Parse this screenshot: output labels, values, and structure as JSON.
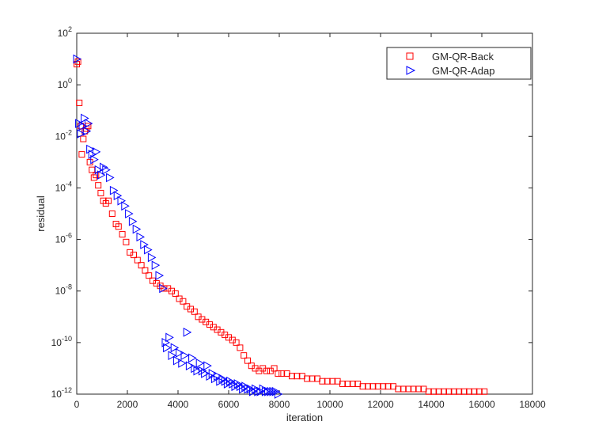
{
  "chart_data": {
    "type": "scatter",
    "title": "",
    "xlabel": "iteration",
    "ylabel": "residual",
    "xlim": [
      0,
      18000
    ],
    "ylim_log10": [
      -12,
      2
    ],
    "y_scale": "log",
    "grid": false,
    "legend_position": "top-right",
    "x_ticks": [
      0,
      2000,
      4000,
      6000,
      8000,
      10000,
      12000,
      14000,
      16000,
      18000
    ],
    "y_tick_exponents": [
      -12,
      -10,
      -8,
      -6,
      -4,
      -2,
      0,
      2
    ],
    "y_tick_base": "10",
    "series": [
      {
        "name": "GM-QR-Back",
        "marker": "square",
        "color": "#ff0000",
        "points": [
          [
            0,
            0.8
          ],
          [
            50,
            0.9
          ],
          [
            100,
            -0.7
          ],
          [
            160,
            -1.6
          ],
          [
            200,
            -2.7
          ],
          [
            260,
            -2.1
          ],
          [
            320,
            -1.8
          ],
          [
            380,
            -1.7
          ],
          [
            450,
            -1.6
          ],
          [
            520,
            -3.0
          ],
          [
            600,
            -3.3
          ],
          [
            680,
            -3.6
          ],
          [
            760,
            -3.5
          ],
          [
            850,
            -3.9
          ],
          [
            950,
            -4.2
          ],
          [
            1050,
            -4.5
          ],
          [
            1150,
            -4.6
          ],
          [
            1250,
            -4.5
          ],
          [
            1400,
            -5.0
          ],
          [
            1550,
            -5.4
          ],
          [
            1650,
            -5.5
          ],
          [
            1800,
            -5.8
          ],
          [
            1950,
            -6.1
          ],
          [
            2100,
            -6.5
          ],
          [
            2250,
            -6.6
          ],
          [
            2400,
            -6.8
          ],
          [
            2550,
            -7.0
          ],
          [
            2700,
            -7.2
          ],
          [
            2850,
            -7.4
          ],
          [
            3000,
            -7.6
          ],
          [
            3150,
            -7.7
          ],
          [
            3300,
            -7.8
          ],
          [
            3450,
            -7.9
          ],
          [
            3600,
            -7.9
          ],
          [
            3750,
            -8.0
          ],
          [
            3900,
            -8.1
          ],
          [
            4050,
            -8.3
          ],
          [
            4200,
            -8.4
          ],
          [
            4350,
            -8.6
          ],
          [
            4500,
            -8.7
          ],
          [
            4650,
            -8.8
          ],
          [
            4800,
            -9.0
          ],
          [
            4950,
            -9.1
          ],
          [
            5100,
            -9.2
          ],
          [
            5250,
            -9.3
          ],
          [
            5400,
            -9.4
          ],
          [
            5550,
            -9.5
          ],
          [
            5700,
            -9.6
          ],
          [
            5850,
            -9.7
          ],
          [
            6000,
            -9.8
          ],
          [
            6150,
            -9.9
          ],
          [
            6300,
            -10.0
          ],
          [
            6450,
            -10.2
          ],
          [
            6600,
            -10.5
          ],
          [
            6750,
            -10.7
          ],
          [
            6900,
            -10.9
          ],
          [
            7050,
            -11.0
          ],
          [
            7200,
            -11.1
          ],
          [
            7350,
            -11.0
          ],
          [
            7500,
            -11.1
          ],
          [
            7650,
            -11.1
          ],
          [
            7800,
            -11.0
          ],
          [
            7950,
            -11.2
          ],
          [
            8100,
            -11.2
          ],
          [
            8300,
            -11.2
          ],
          [
            8500,
            -11.3
          ],
          [
            8700,
            -11.3
          ],
          [
            8900,
            -11.3
          ],
          [
            9100,
            -11.4
          ],
          [
            9300,
            -11.4
          ],
          [
            9500,
            -11.4
          ],
          [
            9700,
            -11.5
          ],
          [
            9900,
            -11.5
          ],
          [
            10100,
            -11.5
          ],
          [
            10300,
            -11.5
          ],
          [
            10500,
            -11.6
          ],
          [
            10700,
            -11.6
          ],
          [
            10900,
            -11.6
          ],
          [
            11100,
            -11.6
          ],
          [
            11300,
            -11.7
          ],
          [
            11500,
            -11.7
          ],
          [
            11700,
            -11.7
          ],
          [
            11900,
            -11.7
          ],
          [
            12100,
            -11.7
          ],
          [
            12300,
            -11.7
          ],
          [
            12500,
            -11.7
          ],
          [
            12700,
            -11.8
          ],
          [
            12900,
            -11.8
          ],
          [
            13100,
            -11.8
          ],
          [
            13300,
            -11.8
          ],
          [
            13500,
            -11.8
          ],
          [
            13700,
            -11.8
          ],
          [
            13900,
            -11.9
          ],
          [
            14100,
            -11.9
          ],
          [
            14300,
            -11.9
          ],
          [
            14500,
            -11.9
          ],
          [
            14700,
            -11.9
          ],
          [
            14900,
            -11.9
          ],
          [
            15100,
            -11.9
          ],
          [
            15300,
            -11.9
          ],
          [
            15500,
            -11.9
          ],
          [
            15700,
            -11.9
          ],
          [
            15900,
            -11.9
          ],
          [
            16100,
            -11.9
          ]
        ]
      },
      {
        "name": "GM-QR-Adap",
        "marker": "triangle-right",
        "color": "#0000ff",
        "points": [
          [
            0,
            1.0
          ],
          [
            80,
            -1.5
          ],
          [
            150,
            -1.9
          ],
          [
            220,
            -1.6
          ],
          [
            300,
            -1.3
          ],
          [
            380,
            -1.8
          ],
          [
            450,
            -1.5
          ],
          [
            520,
            -2.5
          ],
          [
            600,
            -2.7
          ],
          [
            680,
            -2.9
          ],
          [
            760,
            -2.6
          ],
          [
            850,
            -3.3
          ],
          [
            950,
            -3.5
          ],
          [
            1050,
            -3.2
          ],
          [
            1150,
            -3.3
          ],
          [
            1300,
            -3.6
          ],
          [
            1450,
            -4.1
          ],
          [
            1600,
            -4.3
          ],
          [
            1750,
            -4.5
          ],
          [
            1900,
            -4.7
          ],
          [
            2050,
            -5.0
          ],
          [
            2200,
            -5.3
          ],
          [
            2350,
            -5.6
          ],
          [
            2500,
            -5.9
          ],
          [
            2650,
            -6.2
          ],
          [
            2800,
            -6.4
          ],
          [
            2950,
            -6.7
          ],
          [
            3100,
            -7.0
          ],
          [
            3250,
            -7.4
          ],
          [
            3400,
            -7.9
          ],
          [
            3500,
            -10.0
          ],
          [
            3550,
            -10.2
          ],
          [
            3650,
            -9.8
          ],
          [
            3750,
            -10.5
          ],
          [
            3850,
            -10.2
          ],
          [
            3950,
            -10.7
          ],
          [
            4050,
            -10.4
          ],
          [
            4150,
            -10.8
          ],
          [
            4250,
            -10.5
          ],
          [
            4350,
            -9.6
          ],
          [
            4450,
            -10.9
          ],
          [
            4550,
            -10.6
          ],
          [
            4650,
            -11.0
          ],
          [
            4750,
            -11.1
          ],
          [
            4850,
            -10.8
          ],
          [
            4950,
            -11.1
          ],
          [
            5050,
            -11.2
          ],
          [
            5150,
            -10.9
          ],
          [
            5250,
            -11.3
          ],
          [
            5350,
            -11.2
          ],
          [
            5450,
            -11.4
          ],
          [
            5550,
            -11.3
          ],
          [
            5650,
            -11.5
          ],
          [
            5750,
            -11.4
          ],
          [
            5850,
            -11.5
          ],
          [
            5950,
            -11.6
          ],
          [
            6050,
            -11.5
          ],
          [
            6150,
            -11.6
          ],
          [
            6250,
            -11.7
          ],
          [
            6350,
            -11.6
          ],
          [
            6450,
            -11.7
          ],
          [
            6550,
            -11.8
          ],
          [
            6650,
            -11.7
          ],
          [
            6750,
            -11.8
          ],
          [
            6850,
            -11.8
          ],
          [
            6950,
            -11.9
          ],
          [
            7050,
            -11.8
          ],
          [
            7150,
            -11.9
          ],
          [
            7250,
            -11.9
          ],
          [
            7350,
            -11.8
          ],
          [
            7450,
            -11.9
          ],
          [
            7550,
            -11.9
          ],
          [
            7650,
            -11.9
          ],
          [
            7750,
            -11.9
          ],
          [
            7850,
            -11.9
          ],
          [
            7950,
            -12.0
          ]
        ]
      }
    ]
  }
}
